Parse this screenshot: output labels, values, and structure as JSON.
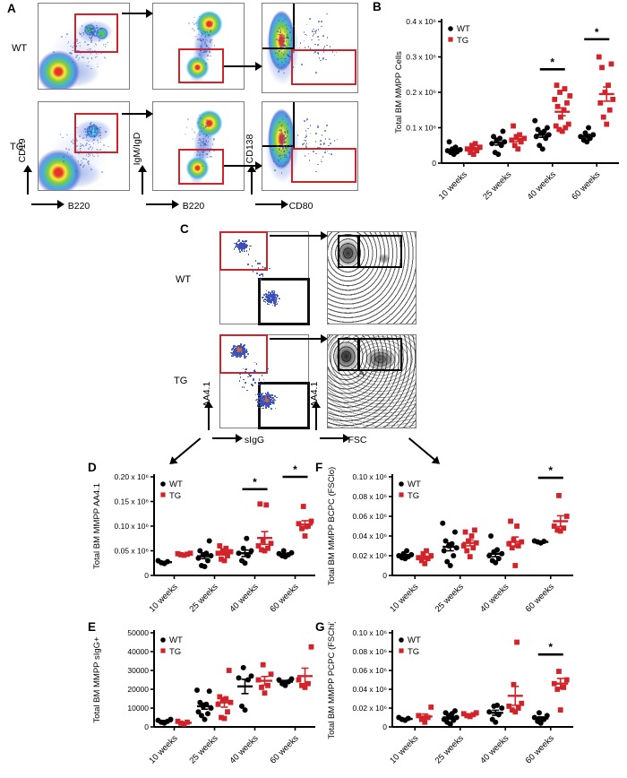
{
  "figure": {
    "labels": {
      "a": "A",
      "b": "B",
      "c": "C",
      "d": "D",
      "e": "E",
      "f": "F",
      "g": "G"
    },
    "colors": {
      "wt": "#000000",
      "tg": "#d2232a",
      "gate_red": "#d2232a",
      "dot_blue": "#3a50b8"
    }
  },
  "panel_a": {
    "rows": [
      {
        "label": "WT"
      },
      {
        "label": "TG"
      }
    ],
    "plots": [
      {
        "x": "B220",
        "y": "CD19"
      },
      {
        "x": "B220",
        "y": "IgM/IgD"
      },
      {
        "x": "CD80",
        "y": "CD138"
      }
    ]
  },
  "panel_c": {
    "rows": [
      {
        "label": "WT"
      },
      {
        "label": "TG"
      }
    ],
    "plots": [
      {
        "x": "sIgG",
        "y": "AA4.1"
      },
      {
        "x": "FSC",
        "y": "AA4.1"
      }
    ]
  },
  "chart_data": [
    {
      "id": "B",
      "type": "scatter",
      "ylabel": "Total BM MMPP Cells",
      "ylim": [
        0,
        400000
      ],
      "yticks": [
        {
          "v": 0,
          "label": "0"
        },
        {
          "v": 100000,
          "label": "0.1 x 10⁶"
        },
        {
          "v": 200000,
          "label": "0.2 x 10⁶"
        },
        {
          "v": 300000,
          "label": "0.3 x 10⁶"
        },
        {
          "v": 400000,
          "label": "0.4 x 10⁶"
        }
      ],
      "categories": [
        "10 weeks",
        "25 weeks",
        "40 weeks",
        "60 weeks"
      ],
      "series": [
        {
          "name": "WT",
          "marker": "circle",
          "color": "#000000",
          "groups": [
            {
              "values": [
                25000,
                30000,
                32000,
                35000,
                38000,
                40000,
                45000,
                60000
              ],
              "mean": 35000,
              "sem": 4000
            },
            {
              "values": [
                25000,
                30000,
                50000,
                55000,
                60000,
                65000,
                70000,
                75000,
                90000
              ],
              "mean": 58000,
              "sem": 7000
            },
            {
              "values": [
                40000,
                50000,
                70000,
                75000,
                80000,
                85000,
                90000,
                95000,
                100000,
                120000
              ],
              "mean": 80000,
              "sem": 7000
            },
            {
              "values": [
                60000,
                65000,
                70000,
                75000,
                80000,
                85000,
                100000
              ],
              "mean": 76000,
              "sem": 5000
            }
          ]
        },
        {
          "name": "TG",
          "marker": "square",
          "color": "#d2232a",
          "groups": [
            {
              "values": [
                25000,
                30000,
                35000,
                40000,
                45000,
                50000,
                55000
              ],
              "mean": 40000,
              "sem": 4000
            },
            {
              "values": [
                40000,
                50000,
                60000,
                65000,
                70000,
                75000,
                80000,
                105000
              ],
              "mean": 68000,
              "sem": 7000
            },
            {
              "values": [
                90000,
                95000,
                100000,
                105000,
                110000,
                130000,
                150000,
                160000,
                170000,
                180000,
                190000,
                200000,
                210000,
                220000
              ],
              "mean": 145000,
              "sem": 11000
            },
            {
              "values": [
                110000,
                130000,
                150000,
                170000,
                180000,
                200000,
                220000,
                270000,
                280000,
                300000
              ],
              "mean": 195000,
              "sem": 20000
            }
          ]
        }
      ],
      "significance": [
        {
          "category_index": 2,
          "y": 265000,
          "label": "*"
        },
        {
          "category_index": 3,
          "y": 350000,
          "label": "*"
        }
      ]
    },
    {
      "id": "D",
      "type": "scatter",
      "ylabel": "Total BM MMPP AA4.1",
      "ylim": [
        0,
        200000
      ],
      "yticks": [
        {
          "v": 0,
          "label": "0"
        },
        {
          "v": 50000,
          "label": "0.05 x 10⁶"
        },
        {
          "v": 100000,
          "label": "0.10 x 10⁶"
        },
        {
          "v": 150000,
          "label": "0.15 x 10⁶"
        },
        {
          "v": 200000,
          "label": "0.20 x 10⁶"
        }
      ],
      "categories": [
        "10 weeks",
        "25 weeks",
        "40 weeks",
        "60 weeks"
      ],
      "series": [
        {
          "name": "WT",
          "marker": "circle",
          "color": "#000000",
          "groups": [
            {
              "values": [
                24000,
                26000,
                28000,
                30000
              ],
              "mean": 27000,
              "sem": 1500
            },
            {
              "values": [
                18000,
                20000,
                30000,
                35000,
                40000,
                42000,
                45000,
                50000,
                70000
              ],
              "mean": 39000,
              "sem": 5000
            },
            {
              "values": [
                25000,
                30000,
                40000,
                45000,
                50000,
                55000,
                75000
              ],
              "mean": 45000,
              "sem": 6500
            },
            {
              "values": [
                38000,
                40000,
                42000,
                44000,
                46000,
                50000
              ],
              "mean": 43000,
              "sem": 2000
            }
          ]
        },
        {
          "name": "TG",
          "marker": "square",
          "color": "#d2232a",
          "groups": [
            {
              "values": [
                41000,
                42000,
                43000,
                44000,
                45000
              ],
              "mean": 43000,
              "sem": 800
            },
            {
              "values": [
                30000,
                33000,
                40000,
                45000,
                48000,
                50000,
                55000,
                60000
              ],
              "mean": 45000,
              "sem": 3500
            },
            {
              "values": [
                50000,
                52000,
                55000,
                60000,
                65000,
                70000,
                143000,
                145000
              ],
              "mean": 76000,
              "sem": 13000
            },
            {
              "values": [
                80000,
                95000,
                100000,
                105000,
                110000,
                140000
              ],
              "mean": 103000,
              "sem": 8000
            }
          ]
        }
      ],
      "significance": [
        {
          "category_index": 2,
          "y": 175000,
          "label": "*"
        },
        {
          "category_index": 3,
          "y": 200000,
          "label": "*"
        }
      ]
    },
    {
      "id": "E",
      "type": "scatter",
      "ylabel": "Total BM MMPP sIgG+",
      "ylim": [
        0,
        50000
      ],
      "yticks": [
        {
          "v": 0,
          "label": "0"
        },
        {
          "v": 10000,
          "label": "10000"
        },
        {
          "v": 20000,
          "label": "20000"
        },
        {
          "v": 30000,
          "label": "30000"
        },
        {
          "v": 40000,
          "label": "40000"
        },
        {
          "v": 50000,
          "label": "50000"
        }
      ],
      "categories": [
        "10 weeks",
        "25 weeks",
        "40 weeks",
        "60 weeks"
      ],
      "series": [
        {
          "name": "WT",
          "marker": "circle",
          "color": "#000000",
          "groups": [
            {
              "values": [
                2000,
                2500,
                3000,
                3500,
                4000
              ],
              "mean": 3000,
              "sem": 400
            },
            {
              "values": [
                4000,
                6000,
                7000,
                8000,
                10000,
                11000,
                12000,
                13000,
                19000,
                19500
              ],
              "mean": 11000,
              "sem": 1600
            },
            {
              "values": [
                9000,
                11000,
                25000,
                26000,
                27000,
                31500
              ],
              "mean": 21500,
              "sem": 3800
            },
            {
              "values": [
                22000,
                23000,
                24000,
                25000,
                25500
              ],
              "mean": 24000,
              "sem": 700
            }
          ]
        },
        {
          "name": "TG",
          "marker": "square",
          "color": "#d2232a",
          "groups": [
            {
              "values": [
                1500,
                2000,
                2500,
                3000
              ],
              "mean": 2200,
              "sem": 350
            },
            {
              "values": [
                4500,
                5000,
                8000,
                12000,
                13000,
                14000,
                15000,
                16000,
                30000
              ],
              "mean": 13000,
              "sem": 2500
            },
            {
              "values": [
                18000,
                21000,
                22000,
                25000,
                28000,
                33000
              ],
              "mean": 24500,
              "sem": 2300
            },
            {
              "values": [
                21000,
                22000,
                23000,
                25000,
                42500
              ],
              "mean": 27000,
              "sem": 4200
            }
          ]
        }
      ],
      "significance": []
    },
    {
      "id": "F",
      "type": "scatter",
      "ylabel": "Total BM MMPP BCPC (FSClo)",
      "ylim": [
        0,
        100000
      ],
      "yticks": [
        {
          "v": 0,
          "label": "0"
        },
        {
          "v": 20000,
          "label": "0.02 x 10⁶"
        },
        {
          "v": 40000,
          "label": "0.04 x 10⁶"
        },
        {
          "v": 60000,
          "label": "0.06 x 10⁶"
        },
        {
          "v": 80000,
          "label": "0.08 x 10⁶"
        },
        {
          "v": 100000,
          "label": "0.10 x 10⁶"
        }
      ],
      "categories": [
        "10 weeks",
        "25 weeks",
        "40 weeks",
        "60 weeks"
      ],
      "series": [
        {
          "name": "WT",
          "marker": "circle",
          "color": "#000000",
          "groups": [
            {
              "values": [
                17000,
                18000,
                19000,
                20000,
                21000,
                22000,
                25000
              ],
              "mean": 20000,
              "sem": 1000
            },
            {
              "values": [
                10000,
                14000,
                20000,
                25000,
                28000,
                30000,
                32000,
                35000,
                44000,
                53000
              ],
              "mean": 29000,
              "sem": 4000
            },
            {
              "values": [
                13000,
                15000,
                17000,
                20000,
                22000,
                24000,
                26000,
                40000
              ],
              "mean": 22000,
              "sem": 3000
            },
            {
              "values": [
                33000,
                34000,
                34500,
                35000
              ],
              "mean": 34000,
              "sem": 500
            }
          ]
        },
        {
          "name": "TG",
          "marker": "square",
          "color": "#d2232a",
          "groups": [
            {
              "values": [
                12000,
                15000,
                17000,
                18000,
                20000,
                22000,
                25000
              ],
              "mean": 18000,
              "sem": 1600
            },
            {
              "values": [
                19000,
                25000,
                28000,
                30000,
                33000,
                35000,
                40000,
                44000,
                46000
              ],
              "mean": 33000,
              "sem": 3000
            },
            {
              "values": [
                10000,
                28000,
                30000,
                32000,
                34000,
                36000,
                50000,
                55000
              ],
              "mean": 34000,
              "sem": 5000
            },
            {
              "values": [
                45000,
                46000,
                48000,
                50000,
                60000,
                81000
              ],
              "mean": 55000,
              "sem": 5500
            }
          ]
        }
      ],
      "significance": [
        {
          "category_index": 3,
          "y": 99000,
          "label": "*"
        }
      ]
    },
    {
      "id": "G",
      "type": "scatter",
      "ylabel": "Total BM MMPP PCPC (FSChi)",
      "ylim": [
        0,
        100000
      ],
      "yticks": [
        {
          "v": 0,
          "label": "0"
        },
        {
          "v": 20000,
          "label": "0.02 x 10⁶"
        },
        {
          "v": 40000,
          "label": "0.04 x 10⁶"
        },
        {
          "v": 60000,
          "label": "0.06 x 10⁶"
        },
        {
          "v": 80000,
          "label": "0.08 x 10⁶"
        },
        {
          "v": 100000,
          "label": "0.10 x 10⁶"
        }
      ],
      "categories": [
        "10 weeks",
        "25 weeks",
        "40 weeks",
        "60 weeks"
      ],
      "series": [
        {
          "name": "WT",
          "marker": "circle",
          "color": "#000000",
          "groups": [
            {
              "values": [
                7000,
                8000,
                9000,
                10000
              ],
              "mean": 8500,
              "sem": 700
            },
            {
              "values": [
                3000,
                5000,
                7000,
                8000,
                10000,
                12000,
                14000,
                15000,
                17000
              ],
              "mean": 10000,
              "sem": 1600
            },
            {
              "values": [
                5000,
                8000,
                13000,
                16000,
                20000,
                22000,
                23000
              ],
              "mean": 15000,
              "sem": 2700
            },
            {
              "values": [
                4000,
                6000,
                8000,
                10000,
                12000,
                15000
              ],
              "mean": 9000,
              "sem": 1600
            }
          ]
        },
        {
          "name": "TG",
          "marker": "square",
          "color": "#d2232a",
          "groups": [
            {
              "values": [
                5000,
                8000,
                10000,
                12000,
                21000
              ],
              "mean": 11000,
              "sem": 2700
            },
            {
              "values": [
                11000,
                12000,
                13000,
                14000,
                15000
              ],
              "mean": 13000,
              "sem": 700
            },
            {
              "values": [
                16000,
                18000,
                20000,
                22000,
                25000,
                45000,
                90000
              ],
              "mean": 33000,
              "sem": 10000
            },
            {
              "values": [
                18000,
                40000,
                42000,
                46000,
                50000,
                59000
              ],
              "mean": 46000,
              "sem": 5500
            }
          ]
        }
      ],
      "significance": [
        {
          "category_index": 3,
          "y": 77000,
          "label": "*"
        }
      ]
    }
  ]
}
